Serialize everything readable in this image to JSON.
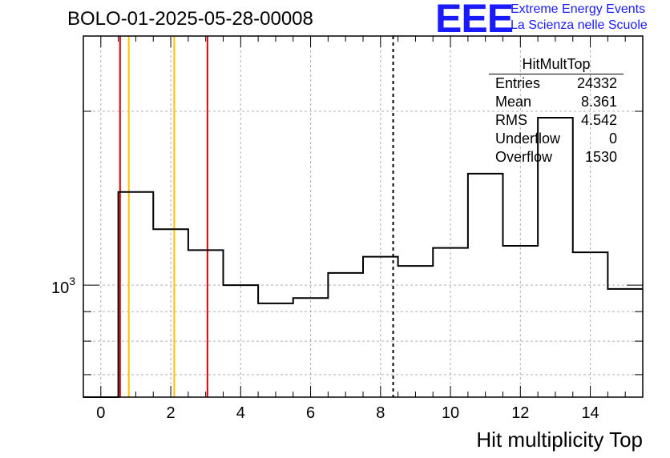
{
  "title": "BOLO-01-2025-05-28-00008",
  "logo": {
    "mark": "EEE",
    "line1": "Extreme Energy Events",
    "line2": "La Scienza nelle Scuole",
    "color": "#1a1aff"
  },
  "stats": {
    "title": "HitMultTop",
    "rows": [
      {
        "label": "Entries",
        "value": "24332"
      },
      {
        "label": "Mean",
        "value": "8.361"
      },
      {
        "label": "RMS",
        "value": "4.542"
      },
      {
        "label": "Underflow",
        "value": "0"
      },
      {
        "label": "Overflow",
        "value": "1530"
      }
    ]
  },
  "chart_data": {
    "type": "histogram",
    "title": "BOLO-01-2025-05-28-00008",
    "xlabel": "Hit multiplicity Top",
    "ylabel": "",
    "xlim": [
      -0.5,
      15.5
    ],
    "ylim": [
      640,
      2700
    ],
    "yscale": "log",
    "bin_width": 1,
    "bins": [
      {
        "x": 0,
        "value": 0
      },
      {
        "x": 1,
        "value": 1450
      },
      {
        "x": 2,
        "value": 1250
      },
      {
        "x": 3,
        "value": 1150
      },
      {
        "x": 4,
        "value": 1000
      },
      {
        "x": 5,
        "value": 930
      },
      {
        "x": 6,
        "value": 950
      },
      {
        "x": 7,
        "value": 1050
      },
      {
        "x": 8,
        "value": 1120
      },
      {
        "x": 9,
        "value": 1080
      },
      {
        "x": 10,
        "value": 1160
      },
      {
        "x": 11,
        "value": 1560
      },
      {
        "x": 12,
        "value": 1170
      },
      {
        "x": 13,
        "value": 1950
      },
      {
        "x": 14,
        "value": 1140
      },
      {
        "x": 15,
        "value": 985
      }
    ],
    "x_ticks": [
      0,
      2,
      4,
      6,
      8,
      10,
      12,
      14
    ],
    "y_major_ticks": [
      {
        "value": 1000,
        "label": "10",
        "exponent": "3"
      }
    ],
    "vertical_lines": [
      {
        "x": 0.55,
        "color": "#e00000",
        "style": "solid"
      },
      {
        "x": 0.8,
        "color": "#ffc000",
        "style": "solid"
      },
      {
        "x": 2.1,
        "color": "#ffc000",
        "style": "solid"
      },
      {
        "x": 3.05,
        "color": "#e00000",
        "style": "solid"
      },
      {
        "x": 8.361,
        "color": "#000000",
        "style": "dashed"
      }
    ],
    "grid": true
  }
}
